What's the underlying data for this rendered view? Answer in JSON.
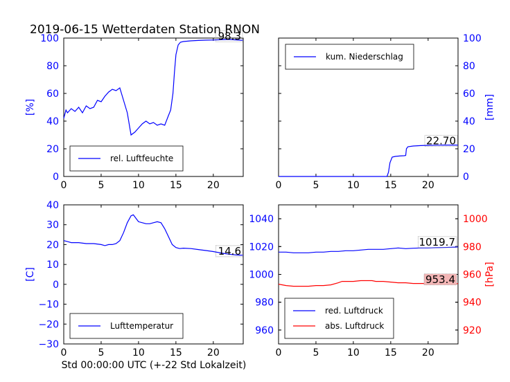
{
  "title": "2019-06-15 Wetterdaten Station RNON",
  "xlabel": "Std 00:00:00 UTC (+-22 Std Lokalzeit)",
  "chart_data": [
    {
      "id": "humidity",
      "type": "line",
      "ylabel": "[%]",
      "ylabel_color": "#0000ff",
      "yticks_side": "left",
      "xlim": [
        0,
        24
      ],
      "ylim": [
        0,
        100
      ],
      "xticks": [
        "0",
        "5",
        "10",
        "15",
        "20"
      ],
      "yticks": [
        "0",
        "20",
        "40",
        "60",
        "80",
        "100"
      ],
      "legend_placement": "lower-left",
      "annotation": "98.3",
      "series": [
        {
          "name": "rel. Luftfeuchte",
          "color": "#0000ff",
          "x": [
            0,
            0.3,
            0.5,
            1,
            1.5,
            2,
            2.5,
            3,
            3.5,
            4,
            4.5,
            5,
            5.5,
            6,
            6.5,
            7,
            7.5,
            8,
            8.5,
            9,
            9.5,
            10,
            10.5,
            11,
            11.5,
            12,
            12.5,
            13,
            13.5,
            14,
            14.3,
            14.6,
            14.8,
            15,
            15.3,
            15.6,
            16,
            17,
            18,
            19,
            20,
            21,
            22,
            23,
            24
          ],
          "y": [
            42,
            48,
            46,
            49,
            47,
            50,
            46,
            51,
            49,
            50,
            55,
            54,
            58,
            61,
            63,
            62,
            64,
            55,
            46,
            30,
            32,
            35,
            38,
            40,
            38,
            39,
            37,
            38,
            37,
            44,
            48,
            60,
            75,
            88,
            95,
            97,
            97.5,
            98,
            98.3,
            98.5,
            98.6,
            98.8,
            99,
            98.7,
            98.3
          ]
        }
      ]
    },
    {
      "id": "precipitation",
      "type": "line",
      "ylabel": "[mm]",
      "ylabel_color": "#0000ff",
      "yticks_side": "right",
      "xlim": [
        0,
        24
      ],
      "ylim": [
        0,
        100
      ],
      "xticks": [
        "0",
        "5",
        "10",
        "15",
        "20"
      ],
      "yticks": [
        "0",
        "20",
        "40",
        "60",
        "80",
        "100"
      ],
      "legend_placement": "upper-left",
      "annotation": "22.70",
      "series": [
        {
          "name": "kum. Niederschlag",
          "color": "#0000ff",
          "x": [
            0,
            14.5,
            14.7,
            14.9,
            15.2,
            15.6,
            16.2,
            16.8,
            17,
            17.1,
            17.3,
            18,
            19,
            20,
            21,
            22,
            23,
            24
          ],
          "y": [
            0,
            0,
            3,
            10,
            14,
            14.5,
            14.8,
            15,
            15.2,
            20,
            21.5,
            22,
            22.3,
            22.5,
            22.6,
            22.7,
            22.7,
            22.7
          ]
        }
      ]
    },
    {
      "id": "temperature",
      "type": "line",
      "ylabel": "[C]",
      "ylabel_color": "#0000ff",
      "yticks_side": "left",
      "xlim": [
        0,
        24
      ],
      "ylim": [
        -30,
        40
      ],
      "xticks": [
        "0",
        "5",
        "10",
        "15",
        "20"
      ],
      "yticks": [
        "−30",
        "−20",
        "−10",
        "0",
        "10",
        "20",
        "30",
        "40"
      ],
      "legend_placement": "lower-left",
      "annotation": "14.6",
      "series": [
        {
          "name": "Lufttemperatur",
          "color": "#0000ff",
          "x": [
            0,
            0.5,
            1,
            2,
            3,
            4,
            5,
            5.5,
            6,
            6.5,
            7,
            7.5,
            8,
            8.5,
            9,
            9.3,
            9.7,
            10,
            10.5,
            11,
            11.5,
            12,
            12.5,
            13,
            13.5,
            14,
            14.5,
            15,
            15.5,
            16,
            17,
            18,
            19,
            20,
            21,
            22,
            23,
            24
          ],
          "y": [
            22,
            21.5,
            21,
            21,
            20.5,
            20.5,
            20,
            19.5,
            20,
            20,
            20.5,
            22,
            26,
            31,
            34.5,
            35,
            33,
            31.5,
            31,
            30.5,
            30.5,
            31,
            31.5,
            31,
            28,
            24,
            20,
            18.5,
            18,
            18.2,
            18,
            17.5,
            17,
            16.5,
            15.8,
            15.2,
            14.8,
            14.6
          ]
        }
      ]
    },
    {
      "id": "pressure",
      "type": "line",
      "ylabel": "[hPa]",
      "ylabel_color": "#ff0000",
      "left_ylim": [
        950,
        1050
      ],
      "left_yticks": [
        "960",
        "980",
        "1000",
        "1020",
        "1040"
      ],
      "left_tick_color": "#0000ff",
      "right_ylim": [
        910,
        1010
      ],
      "right_yticks": [
        "920",
        "940",
        "960",
        "980",
        "1000"
      ],
      "right_tick_color": "#ff0000",
      "xlim": [
        0,
        24
      ],
      "xticks": [
        "0",
        "5",
        "10",
        "15",
        "20"
      ],
      "legend_placement": "lower-left",
      "annotations": [
        "1019.7",
        "953.4"
      ],
      "series": [
        {
          "name": "red. Luftdruck",
          "color": "#0000ff",
          "axis": "left",
          "x": [
            0,
            1,
            2,
            3,
            4,
            5,
            6,
            7,
            8,
            9,
            10,
            11,
            12,
            13,
            14,
            15,
            16,
            17,
            18,
            19,
            20,
            21,
            22,
            23,
            24
          ],
          "y": [
            1016,
            1016,
            1015.5,
            1015.5,
            1015.5,
            1016,
            1016,
            1016.5,
            1016.5,
            1017,
            1017,
            1017.5,
            1018,
            1018,
            1018,
            1018.5,
            1019,
            1018.5,
            1018.8,
            1019,
            1019,
            1019.2,
            1019.3,
            1019.5,
            1019.7
          ]
        },
        {
          "name": "abs. Luftdruck",
          "color": "#ff0000",
          "axis": "right",
          "x": [
            0,
            1,
            2,
            3,
            4,
            5,
            6,
            7,
            8,
            8.5,
            9,
            10,
            11,
            12,
            12.5,
            13,
            14,
            15,
            16,
            17,
            18,
            19,
            20,
            21,
            22,
            23,
            24
          ],
          "y": [
            953,
            952,
            951.5,
            951.5,
            951.5,
            952,
            952,
            952.5,
            954,
            955,
            955,
            955,
            955.5,
            955.5,
            955.5,
            955,
            955,
            954.5,
            954,
            954,
            953.5,
            953.5,
            953.5,
            953.5,
            953.5,
            953.4,
            953.4
          ]
        }
      ]
    }
  ]
}
